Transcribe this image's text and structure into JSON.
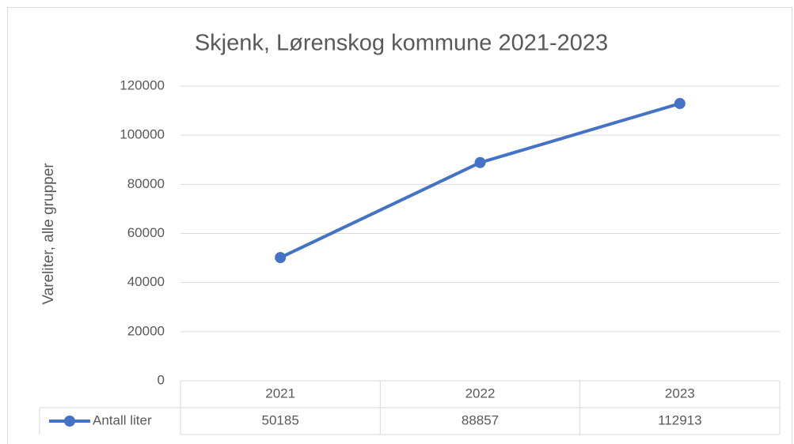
{
  "chart_data": {
    "type": "line",
    "title": "Skjenk, Lørenskog kommune 2021-2023",
    "y_label": "Vareliter, alle grupper",
    "categories": [
      "2021",
      "2022",
      "2023"
    ],
    "series": [
      {
        "name": "Antall liter",
        "color": "#4472c4",
        "values": [
          50185,
          88857,
          112913
        ]
      }
    ],
    "ylim": [
      0,
      120000
    ],
    "yticks": [
      0,
      20000,
      40000,
      60000,
      80000,
      100000,
      120000
    ],
    "grid": true,
    "data_table": true
  }
}
